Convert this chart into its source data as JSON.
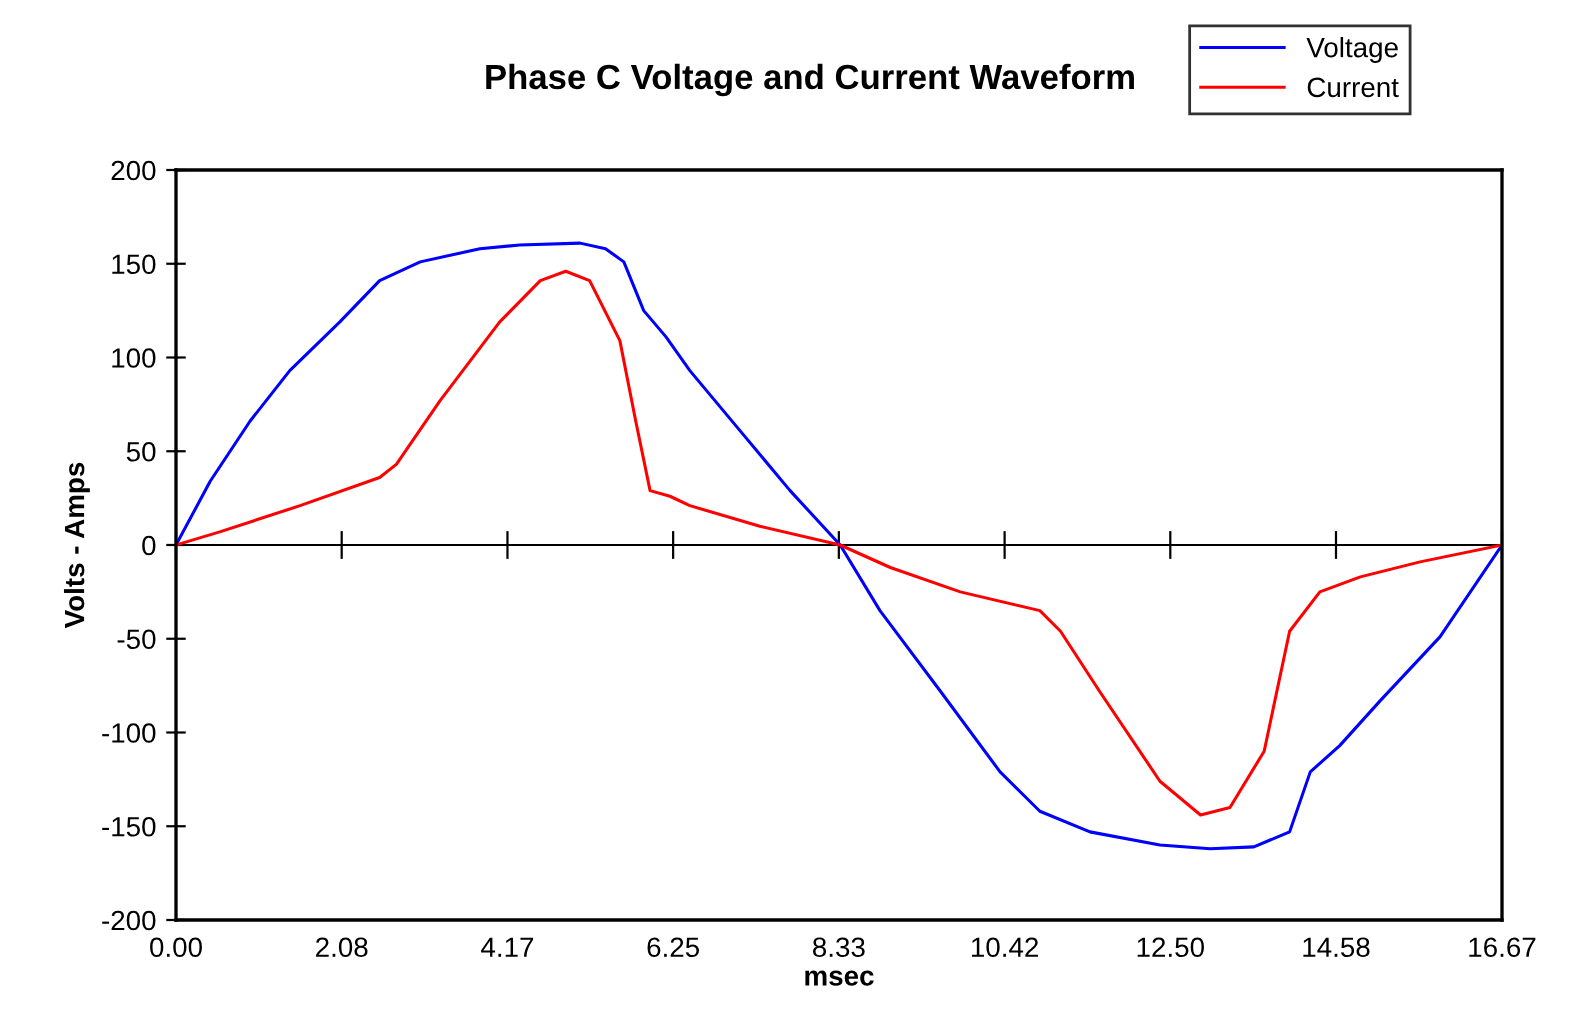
{
  "chart_data": {
    "type": "line",
    "title": "Phase C Voltage and Current Waveform",
    "xlabel": "msec",
    "ylabel": "Volts - Amps",
    "xlim": [
      0,
      16.67
    ],
    "ylim": [
      -200,
      200
    ],
    "xticks": [
      {
        "value": 0,
        "label": "0.00"
      },
      {
        "value": 2.083,
        "label": "2.08"
      },
      {
        "value": 4.167,
        "label": "4.17"
      },
      {
        "value": 6.25,
        "label": "6.25"
      },
      {
        "value": 8.333,
        "label": "8.33"
      },
      {
        "value": 10.417,
        "label": "10.42"
      },
      {
        "value": 12.5,
        "label": "12.50"
      },
      {
        "value": 14.583,
        "label": "14.58"
      },
      {
        "value": 16.67,
        "label": "16.67"
      }
    ],
    "yticks": [
      -200,
      -150,
      -100,
      -50,
      0,
      50,
      100,
      150,
      200
    ],
    "legend": "top right",
    "marker": "none",
    "line_style": "solid",
    "series": [
      {
        "name": "Voltage",
        "color": "#0000ff",
        "x": [
          0,
          0.43,
          0.93,
          1.43,
          2.06,
          2.56,
          3.07,
          3.82,
          4.32,
          5.08,
          5.4,
          5.63,
          5.88,
          6.16,
          6.46,
          7.09,
          7.72,
          8.35,
          8.85,
          9.61,
          10.36,
          10.86,
          11.49,
          12.37,
          13.0,
          13.55,
          14.0,
          14.26,
          14.63,
          15.14,
          15.89,
          16.67
        ],
        "values": [
          0,
          34,
          66,
          93,
          119,
          141,
          151,
          158,
          160,
          161,
          158,
          151,
          125,
          111,
          93,
          61,
          29,
          0,
          -35,
          -78,
          -121,
          -142,
          -153,
          -160,
          -162,
          -161,
          -153,
          -121,
          -107,
          -83,
          -49,
          0
        ]
      },
      {
        "name": "Current",
        "color": "#ff0000",
        "x": [
          0,
          0.55,
          1.56,
          2.56,
          2.77,
          3.32,
          4.07,
          4.58,
          4.9,
          5.2,
          5.58,
          5.78,
          5.96,
          6.21,
          6.46,
          7.34,
          8.35,
          8.98,
          9.86,
          10.86,
          11.12,
          11.61,
          12.37,
          12.88,
          13.25,
          13.68,
          14.0,
          14.38,
          14.89,
          15.64,
          16.67
        ],
        "values": [
          0,
          7,
          21,
          36,
          43,
          77,
          119,
          141,
          146,
          141,
          109,
          66,
          29,
          26,
          21,
          10,
          0,
          -12,
          -25,
          -35,
          -46,
          -78,
          -126,
          -144,
          -140,
          -110,
          -46,
          -25,
          -17,
          -9,
          0
        ]
      }
    ]
  }
}
